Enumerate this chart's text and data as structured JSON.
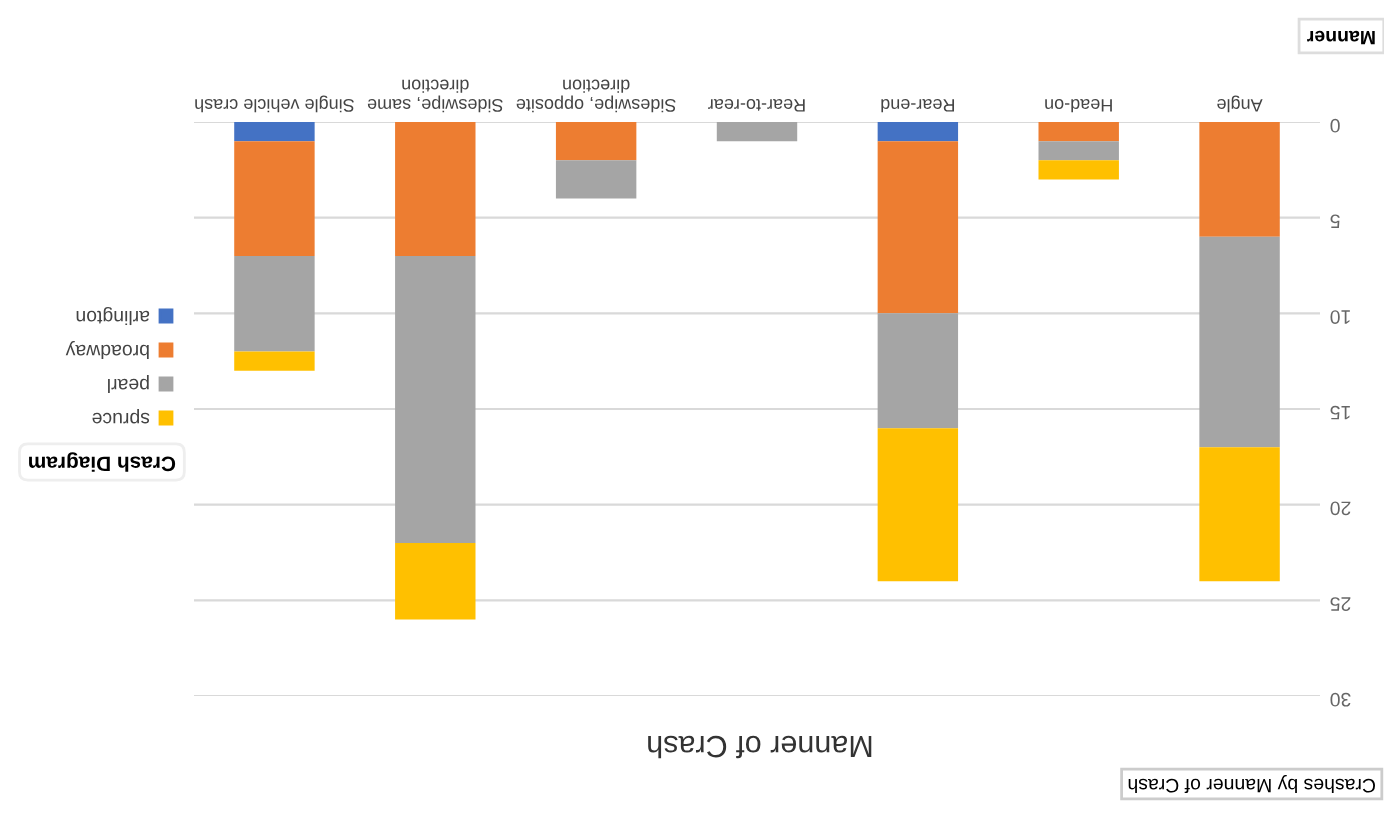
{
  "chart_data": {
    "type": "bar",
    "stacked": true,
    "title": "Crashes by Manner of Crash",
    "xlabel": "Manner of Crash",
    "legend_title": "Crash Diagram",
    "annotations": [
      "Manner"
    ],
    "categories": [
      "Single vehicle crash",
      "Sideswipe, same direction",
      "Sideswipe, opposite direction",
      "Rear-to-rear",
      "Rear-end",
      "Head-on",
      "Angle"
    ],
    "series": [
      {
        "name": "arlington",
        "color": "#4472c4",
        "values": [
          1,
          null,
          null,
          null,
          1,
          null,
          null
        ]
      },
      {
        "name": "broadway",
        "color": "#ed7d31",
        "values": [
          6,
          7,
          2,
          null,
          9,
          1,
          6
        ]
      },
      {
        "name": "pearl",
        "color": "#a5a5a5",
        "values": [
          5,
          15,
          2,
          1,
          6,
          1,
          11
        ]
      },
      {
        "name": "spruce",
        "color": "#ffc000",
        "values": [
          1,
          4,
          null,
          null,
          8,
          1,
          7
        ]
      }
    ],
    "ylim": [
      30,
      0
    ],
    "yticks": [
      0,
      5,
      10,
      15,
      20,
      25,
      30
    ],
    "grid": "y",
    "legend": "left"
  }
}
